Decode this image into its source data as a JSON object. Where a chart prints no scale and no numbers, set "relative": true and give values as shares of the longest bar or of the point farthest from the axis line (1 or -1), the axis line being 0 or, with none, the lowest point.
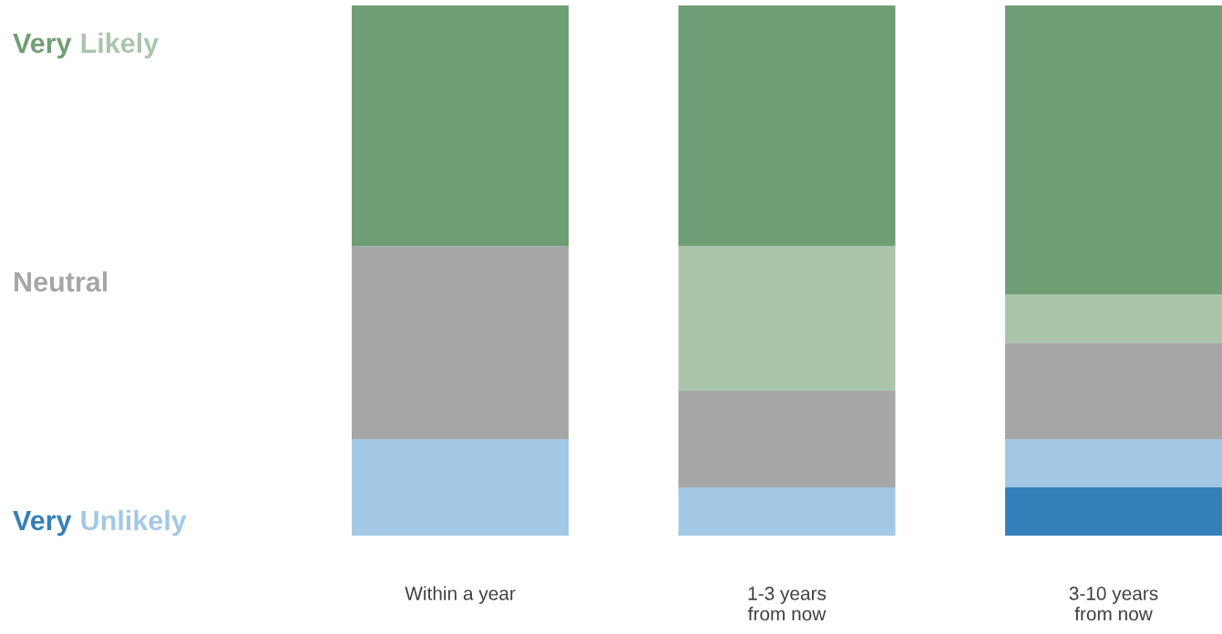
{
  "chart_data": {
    "type": "bar",
    "stacked": true,
    "relative": true,
    "tick_labels": "x",
    "categories": [
      "Within a year",
      "1-3 years\nfrom now",
      "3-10 years\nfrom now"
    ],
    "series": [
      {
        "name": "Very",
        "color": "#3580b8",
        "values": [
          0,
          0,
          0.091
        ]
      },
      {
        "name": "Unlikely",
        "color": "#a3c8e5",
        "values": [
          0.182,
          0.091,
          0.091
        ]
      },
      {
        "name": "Neutral",
        "color": "#a6a6a6",
        "values": [
          0.364,
          0.182,
          0.182
        ]
      },
      {
        "name": "Likely",
        "color": "#abc5ad",
        "values": [
          0,
          0.273,
          0.091
        ]
      },
      {
        "name": "Very",
        "color": "#6f9e75",
        "values": [
          0.454,
          0.454,
          0.545
        ]
      }
    ]
  }
}
